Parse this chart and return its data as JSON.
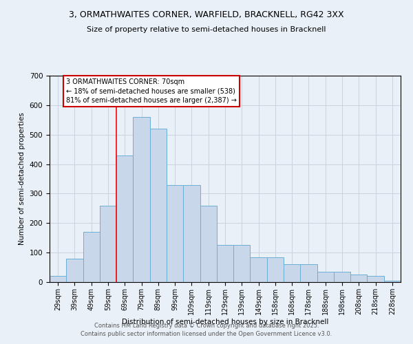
{
  "title_line1": "3, ORMATHWAITES CORNER, WARFIELD, BRACKNELL, RG42 3XX",
  "title_line2": "Size of property relative to semi-detached houses in Bracknell",
  "xlabel": "Distribution of semi-detached houses by size in Bracknell",
  "ylabel": "Number of semi-detached properties",
  "categories": [
    "29sqm",
    "39sqm",
    "49sqm",
    "59sqm",
    "69sqm",
    "79sqm",
    "89sqm",
    "99sqm",
    "109sqm",
    "119sqm",
    "129sqm",
    "139sqm",
    "149sqm",
    "158sqm",
    "168sqm",
    "178sqm",
    "188sqm",
    "198sqm",
    "208sqm",
    "218sqm",
    "228sqm"
  ],
  "values": [
    20,
    80,
    170,
    260,
    430,
    560,
    520,
    330,
    330,
    260,
    125,
    125,
    85,
    85,
    60,
    60,
    35,
    35,
    25,
    20,
    5
  ],
  "bar_color": "#c8d8ea",
  "bar_edge_color": "#6baed6",
  "grid_color": "#c8d4e0",
  "background_color": "#eaf0f8",
  "red_line_index": 4,
  "annotation_text": "3 ORMATHWAITES CORNER: 70sqm\n← 18% of semi-detached houses are smaller (538)\n81% of semi-detached houses are larger (2,387) →",
  "annotation_edge_color": "#cc0000",
  "footer_line1": "Contains HM Land Registry data © Crown copyright and database right 2025.",
  "footer_line2": "Contains public sector information licensed under the Open Government Licence v3.0.",
  "ylim": [
    0,
    700
  ],
  "yticks": [
    0,
    100,
    200,
    300,
    400,
    500,
    600,
    700
  ]
}
